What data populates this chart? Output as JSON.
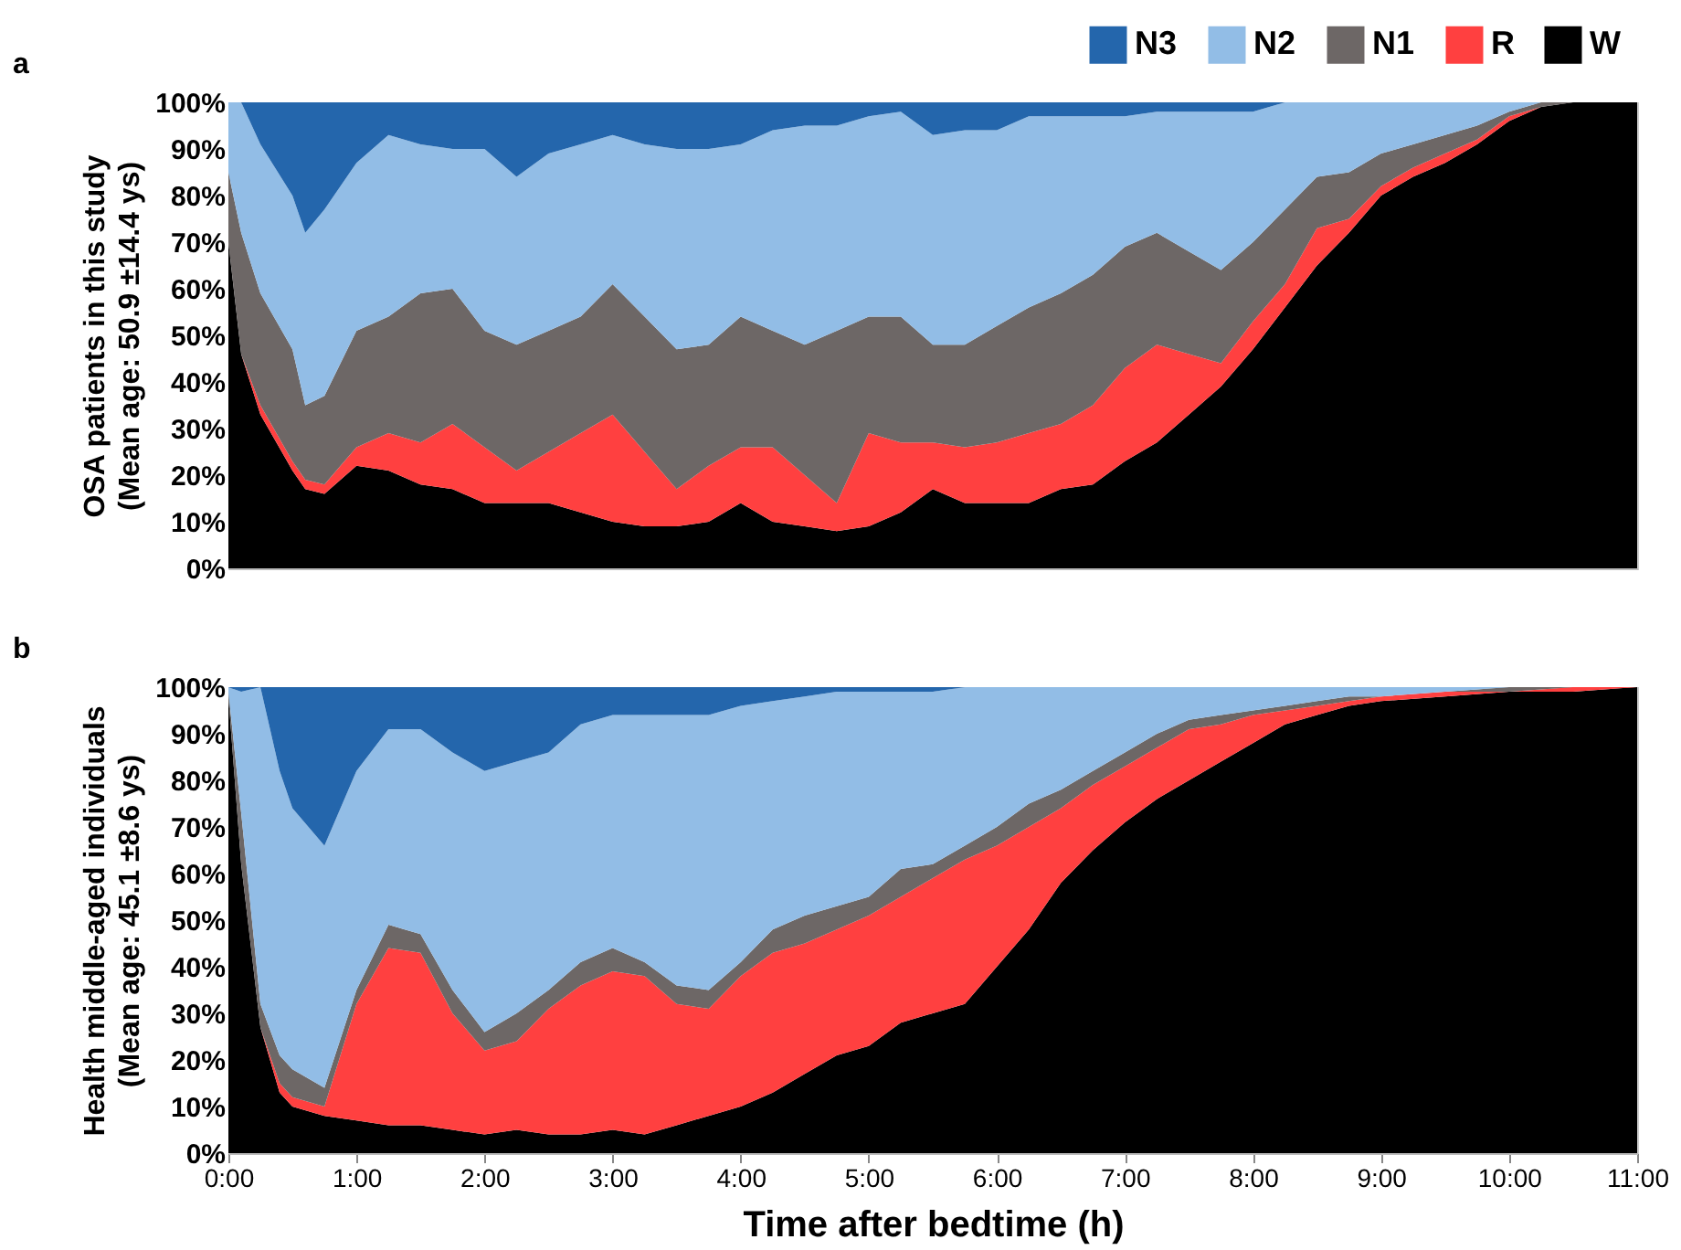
{
  "chart_data": [
    {
      "type": "area",
      "title": "a",
      "stacked": true,
      "legend": "top right",
      "tick_labels": "y",
      "ylabel": "OSA patients in this study\n(Mean age: 50.9 ±14.4 ys)",
      "xlim": [
        0,
        11
      ],
      "ylim": [
        0,
        100
      ],
      "yticks": [
        {
          "value": 0,
          "label": "0%"
        },
        {
          "value": 10,
          "label": "10%"
        },
        {
          "value": 20,
          "label": "20%"
        },
        {
          "value": 30,
          "label": "30%"
        },
        {
          "value": 40,
          "label": "40%"
        },
        {
          "value": 50,
          "label": "50%"
        },
        {
          "value": 60,
          "label": "60%"
        },
        {
          "value": 70,
          "label": "70%"
        },
        {
          "value": 80,
          "label": "80%"
        },
        {
          "value": 90,
          "label": "90%"
        },
        {
          "value": 100,
          "label": "100%"
        }
      ],
      "x": [
        0,
        0.1,
        0.25,
        0.5,
        0.6,
        0.75,
        1,
        1.25,
        1.5,
        1.75,
        2,
        2.25,
        2.5,
        2.75,
        3,
        3.25,
        3.5,
        3.75,
        4,
        4.25,
        4.5,
        4.75,
        5,
        5.25,
        5.5,
        5.75,
        6,
        6.25,
        6.5,
        6.75,
        7,
        7.25,
        7.5,
        7.75,
        8,
        8.25,
        8.5,
        8.75,
        9,
        9.25,
        9.5,
        9.75,
        10,
        10.25,
        10.5,
        10.75,
        11
      ],
      "series": [
        {
          "name": "W",
          "color": "#000000",
          "values": [
            70,
            46,
            33,
            21,
            17,
            16,
            22,
            21,
            18,
            17,
            14,
            14,
            14,
            12,
            10,
            9,
            9,
            10,
            14,
            10,
            9,
            8,
            9,
            12,
            17,
            14,
            14,
            14,
            17,
            18,
            23,
            27,
            33,
            39,
            47,
            56,
            65,
            72,
            80,
            84,
            87,
            91,
            96,
            99,
            100,
            100,
            100
          ]
        },
        {
          "name": "R",
          "color": "#ff4040",
          "values": [
            0,
            0,
            2,
            2,
            2,
            2,
            4,
            8,
            9,
            14,
            12,
            7,
            11,
            17,
            23,
            16,
            8,
            12,
            12,
            16,
            11,
            6,
            20,
            15,
            10,
            12,
            13,
            15,
            14,
            17,
            20,
            21,
            13,
            5,
            6,
            5,
            8,
            3,
            2,
            2,
            2,
            1,
            1,
            0,
            0,
            0,
            0
          ]
        },
        {
          "name": "N1",
          "color": "#6d6766",
          "values": [
            15,
            26,
            24,
            24,
            16,
            19,
            25,
            25,
            32,
            29,
            25,
            27,
            26,
            25,
            28,
            29,
            30,
            26,
            28,
            25,
            28,
            37,
            25,
            27,
            21,
            22,
            25,
            27,
            28,
            28,
            26,
            24,
            22,
            20,
            17,
            16,
            11,
            10,
            7,
            5,
            4,
            3,
            1,
            1,
            0,
            0,
            0
          ]
        },
        {
          "name": "N2",
          "color": "#92bde6",
          "values": [
            15,
            28,
            32,
            33,
            37,
            40,
            36,
            39,
            32,
            30,
            39,
            36,
            38,
            37,
            32,
            37,
            43,
            42,
            37,
            43,
            47,
            44,
            43,
            44,
            45,
            46,
            42,
            41,
            38,
            34,
            28,
            26,
            30,
            34,
            28,
            23,
            16,
            15,
            11,
            9,
            7,
            5,
            2,
            0,
            0,
            0,
            0
          ]
        },
        {
          "name": "N3",
          "color": "#2466ac",
          "values": [
            0,
            0,
            9,
            20,
            28,
            23,
            13,
            7,
            9,
            10,
            10,
            16,
            11,
            9,
            7,
            9,
            10,
            10,
            9,
            6,
            5,
            5,
            3,
            2,
            7,
            6,
            6,
            3,
            3,
            3,
            3,
            2,
            2,
            2,
            2,
            0,
            0,
            0,
            0,
            0,
            0,
            0,
            0,
            0,
            0,
            0,
            0
          ]
        }
      ]
    },
    {
      "type": "area",
      "title": "b",
      "stacked": true,
      "ylabel": "Health middle-aged individuals\n(Mean age: 45.1 ±8.6 ys)",
      "xlabel": "Time after bedtime (h)",
      "xlim": [
        0,
        11
      ],
      "xticks": [
        {
          "value": 0,
          "label": "0:00"
        },
        {
          "value": 1,
          "label": "1:00"
        },
        {
          "value": 2,
          "label": "2:00"
        },
        {
          "value": 3,
          "label": "3:00"
        },
        {
          "value": 4,
          "label": "4:00"
        },
        {
          "value": 5,
          "label": "5:00"
        },
        {
          "value": 6,
          "label": "6:00"
        },
        {
          "value": 7,
          "label": "7:00"
        },
        {
          "value": 8,
          "label": "8:00"
        },
        {
          "value": 9,
          "label": "9:00"
        },
        {
          "value": 10,
          "label": "10:00"
        },
        {
          "value": 11,
          "label": "11:00"
        }
      ],
      "ylim": [
        0,
        100
      ],
      "yticks": [
        {
          "value": 0,
          "label": "0%"
        },
        {
          "value": 10,
          "label": "10%"
        },
        {
          "value": 20,
          "label": "20%"
        },
        {
          "value": 30,
          "label": "30%"
        },
        {
          "value": 40,
          "label": "40%"
        },
        {
          "value": 50,
          "label": "50%"
        },
        {
          "value": 60,
          "label": "60%"
        },
        {
          "value": 70,
          "label": "70%"
        },
        {
          "value": 80,
          "label": "80%"
        },
        {
          "value": 90,
          "label": "90%"
        },
        {
          "value": 100,
          "label": "100%"
        }
      ],
      "x": [
        0,
        0.1,
        0.25,
        0.4,
        0.5,
        0.75,
        1,
        1.25,
        1.5,
        1.75,
        2,
        2.25,
        2.5,
        2.75,
        3,
        3.25,
        3.5,
        3.75,
        4,
        4.25,
        4.5,
        4.75,
        5,
        5.25,
        5.5,
        5.75,
        6,
        6.25,
        6.5,
        6.75,
        7,
        7.25,
        7.5,
        7.75,
        8,
        8.25,
        8.5,
        8.75,
        9,
        9.5,
        10,
        10.5,
        11
      ],
      "series": [
        {
          "color": "#000000",
          "values": [
            98,
            62,
            27,
            13,
            10,
            8,
            7,
            6,
            6,
            5,
            4,
            5,
            4,
            4,
            5,
            4,
            6,
            8,
            10,
            13,
            17,
            21,
            23,
            28,
            30,
            32,
            40,
            48,
            58,
            65,
            71,
            76,
            80,
            84,
            88,
            92,
            94,
            96,
            97,
            98,
            99,
            99,
            100
          ]
        },
        {
          "color": "#ff4040",
          "values": [
            0,
            0,
            0,
            2,
            2,
            2,
            25,
            38,
            37,
            25,
            18,
            19,
            27,
            32,
            34,
            34,
            26,
            23,
            28,
            30,
            28,
            27,
            28,
            27,
            29,
            31,
            26,
            22,
            16,
            14,
            12,
            11,
            11,
            8,
            6,
            3,
            2,
            1,
            1,
            1,
            0,
            1,
            0
          ]
        },
        {
          "color": "#6d6766",
          "values": [
            1,
            11,
            5,
            6,
            6,
            4,
            3,
            5,
            4,
            5,
            4,
            6,
            4,
            5,
            5,
            3,
            4,
            4,
            3,
            5,
            6,
            5,
            4,
            6,
            3,
            3,
            4,
            5,
            4,
            3,
            3,
            3,
            2,
            2,
            1,
            1,
            1,
            1,
            0,
            0,
            1,
            0,
            0
          ]
        },
        {
          "color": "#92bde6",
          "values": [
            1,
            26,
            68,
            61,
            56,
            52,
            47,
            42,
            44,
            51,
            56,
            54,
            51,
            51,
            50,
            53,
            58,
            59,
            55,
            49,
            47,
            46,
            44,
            38,
            37,
            34,
            30,
            25,
            22,
            18,
            14,
            10,
            7,
            6,
            5,
            4,
            3,
            2,
            2,
            1,
            0,
            0,
            0
          ]
        },
        {
          "color": "#2466ac",
          "values": [
            0,
            1,
            0,
            18,
            26,
            34,
            18,
            9,
            9,
            14,
            18,
            16,
            14,
            8,
            6,
            6,
            6,
            6,
            4,
            3,
            2,
            1,
            1,
            1,
            1,
            0,
            0,
            0,
            0,
            0,
            0,
            0,
            0,
            0,
            0,
            0,
            0,
            0,
            0,
            0,
            0,
            0,
            0
          ]
        }
      ]
    }
  ]
}
